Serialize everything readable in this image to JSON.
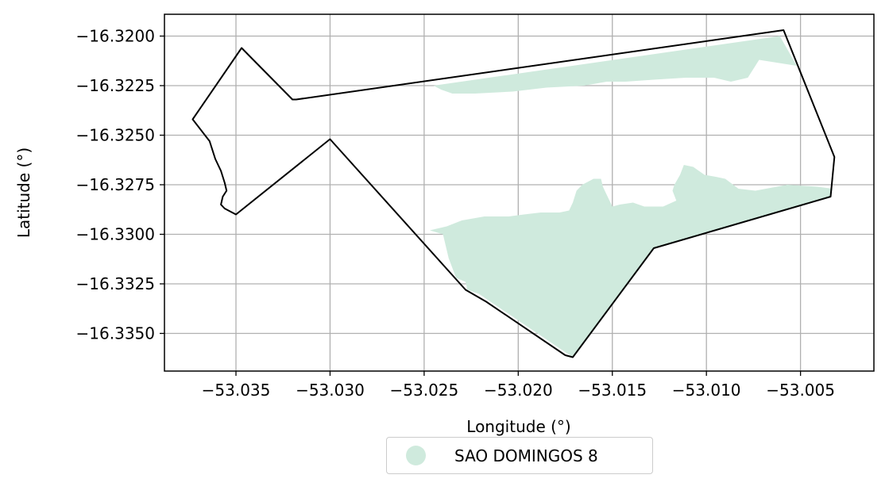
{
  "chart_data": {
    "type": "map",
    "xlabel": "Longitude (°)",
    "ylabel": "Latitude (°)",
    "xlim": [
      -53.0388,
      -53.0011
    ],
    "ylim": [
      -16.3369,
      -16.3189
    ],
    "xticks": [
      -53.035,
      -53.03,
      -53.025,
      -53.02,
      -53.015,
      -53.01,
      -53.005
    ],
    "yticks": [
      -16.32,
      -16.3225,
      -16.325,
      -16.3275,
      -16.33,
      -16.3325,
      -16.335
    ],
    "grid": true,
    "legend_position": "below",
    "legend": [
      {
        "label": "SAO DOMINGOS 8",
        "color": "#cfeadd"
      }
    ],
    "boundary_color": "#000000",
    "fill_color": "#cfeadd",
    "boundary": [
      [
        -53.0347,
        -16.3206
      ],
      [
        -53.032,
        -16.3232
      ],
      [
        -53.0318,
        -16.3232
      ],
      [
        -53.0059,
        -16.3197
      ],
      [
        -53.0032,
        -16.3261
      ],
      [
        -53.0034,
        -16.3281
      ],
      [
        -53.0128,
        -16.3307
      ],
      [
        -53.0171,
        -16.3362
      ],
      [
        -53.0175,
        -16.3361
      ],
      [
        -53.0217,
        -16.3334
      ],
      [
        -53.0228,
        -16.3328
      ],
      [
        -53.03,
        -16.3252
      ],
      [
        -53.035,
        -16.329
      ],
      [
        -53.0356,
        -16.3287
      ],
      [
        -53.0358,
        -16.3285
      ],
      [
        -53.0357,
        -16.3281
      ],
      [
        -53.0355,
        -16.3278
      ],
      [
        -53.0356,
        -16.3274
      ],
      [
        -53.0358,
        -16.3268
      ],
      [
        -53.0361,
        -16.3262
      ],
      [
        -53.0362,
        -16.3259
      ],
      [
        -53.0364,
        -16.3253
      ],
      [
        -53.0373,
        -16.3242
      ]
    ],
    "area_north": [
      [
        -53.0245,
        -16.3225
      ],
      [
        -53.0061,
        -16.32
      ],
      [
        -53.0052,
        -16.3215
      ],
      [
        -53.0072,
        -16.3212
      ],
      [
        -53.0074,
        -16.3215
      ],
      [
        -53.0078,
        -16.3221
      ],
      [
        -53.0087,
        -16.3223
      ],
      [
        -53.0096,
        -16.3221
      ],
      [
        -53.0111,
        -16.3221
      ],
      [
        -53.0128,
        -16.3222
      ],
      [
        -53.0143,
        -16.3223
      ],
      [
        -53.0153,
        -16.3223
      ],
      [
        -53.0165,
        -16.3225
      ],
      [
        -53.0185,
        -16.3226
      ],
      [
        -53.0203,
        -16.3228
      ],
      [
        -53.0223,
        -16.3229
      ],
      [
        -53.0235,
        -16.3229
      ],
      [
        -53.0241,
        -16.3227
      ]
    ],
    "area_south": [
      [
        -53.0247,
        -16.3298
      ],
      [
        -53.024,
        -16.33
      ],
      [
        -53.0237,
        -16.3312
      ],
      [
        -53.0233,
        -16.3322
      ],
      [
        -53.0228,
        -16.3324
      ],
      [
        -53.0227,
        -16.3328
      ],
      [
        -53.0221,
        -16.333
      ],
      [
        -53.0171,
        -16.3362
      ],
      [
        -53.0128,
        -16.3307
      ],
      [
        -53.0034,
        -16.3281
      ],
      [
        -53.0033,
        -16.3277
      ],
      [
        -53.0041,
        -16.3276
      ],
      [
        -53.0057,
        -16.3275
      ],
      [
        -53.0074,
        -16.3278
      ],
      [
        -53.0083,
        -16.3277
      ],
      [
        -53.009,
        -16.3272
      ],
      [
        -53.0095,
        -16.3271
      ],
      [
        -53.0101,
        -16.327
      ],
      [
        -53.0107,
        -16.3266
      ],
      [
        -53.0112,
        -16.3265
      ],
      [
        -53.0114,
        -16.327
      ],
      [
        -53.0117,
        -16.3275
      ],
      [
        -53.0118,
        -16.3278
      ],
      [
        -53.0116,
        -16.3283
      ],
      [
        -53.0123,
        -16.3286
      ],
      [
        -53.0127,
        -16.3286
      ],
      [
        -53.0133,
        -16.3286
      ],
      [
        -53.0139,
        -16.3284
      ],
      [
        -53.0146,
        -16.3285
      ],
      [
        -53.015,
        -16.3286
      ],
      [
        -53.0153,
        -16.328
      ],
      [
        -53.0155,
        -16.3276
      ],
      [
        -53.0156,
        -16.3272
      ],
      [
        -53.016,
        -16.3272
      ],
      [
        -53.0166,
        -16.3275
      ],
      [
        -53.0169,
        -16.3278
      ],
      [
        -53.0171,
        -16.3284
      ],
      [
        -53.0173,
        -16.3288
      ],
      [
        -53.0178,
        -16.3289
      ],
      [
        -53.0188,
        -16.3289
      ],
      [
        -53.0197,
        -16.329
      ],
      [
        -53.0205,
        -16.3291
      ],
      [
        -53.0218,
        -16.3291
      ],
      [
        -53.023,
        -16.3293
      ],
      [
        -53.0238,
        -16.3296
      ]
    ]
  },
  "tick_labels": {
    "x": [
      "−53.035",
      "−53.030",
      "−53.025",
      "−53.020",
      "−53.015",
      "−53.010",
      "−53.005"
    ],
    "y": [
      "−16.3200",
      "−16.3225",
      "−16.3250",
      "−16.3275",
      "−16.3300",
      "−16.3325",
      "−16.3350"
    ]
  },
  "legend_label": "SAO DOMINGOS 8"
}
